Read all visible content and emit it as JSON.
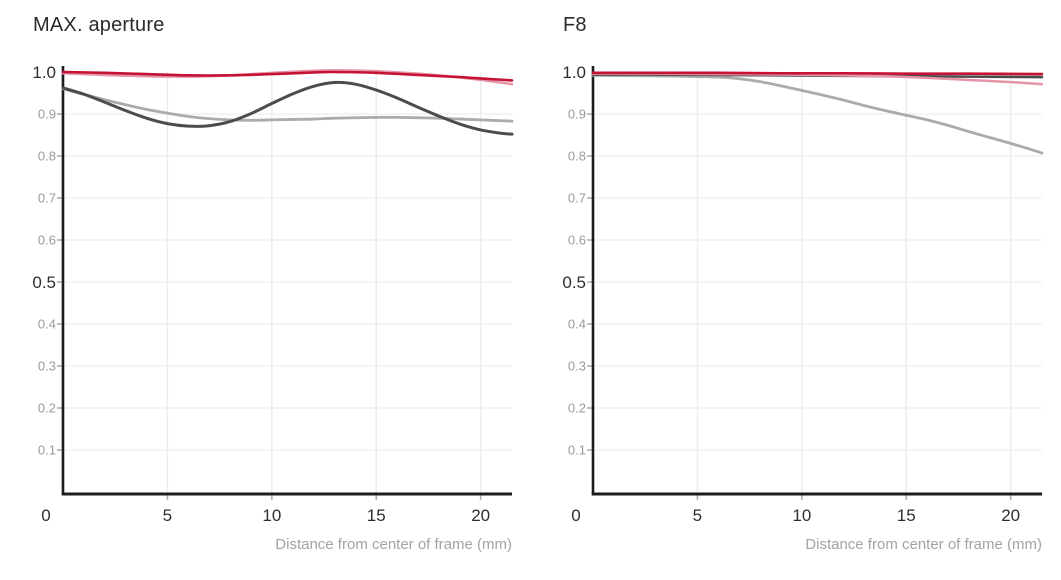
{
  "colors": {
    "background": "#ffffff",
    "crimson": "#c51235",
    "pink": "#e695a8",
    "dark_gray": "#4c4c4c",
    "light_gray": "#ababab",
    "axis_line": "#1c1c1c",
    "grid_vertical": "#ececec",
    "grid_horizontal": "#f2efef",
    "tick_mark": "#b0b0b0",
    "label_major": "#2e2e2e",
    "label_minor": "#9a9a9a",
    "caption": "#a3a3a3",
    "title": "#2b2b2b"
  },
  "chart_data": [
    {
      "type": "line",
      "title": "MAX. aperture",
      "xlabel": "Distance from center of frame (mm)",
      "ylabel": "",
      "xlim": [
        0,
        21.5
      ],
      "ylim": [
        0,
        1.0
      ],
      "x_ticks": [
        5,
        10,
        15,
        20
      ],
      "origin_label": "0",
      "y_ticks_major": [
        {
          "v": 1.0,
          "label": "1.0"
        },
        {
          "v": 0.5,
          "label": "0.5"
        }
      ],
      "y_ticks_minor": [
        {
          "v": 0.9,
          "label": "0.9"
        },
        {
          "v": 0.8,
          "label": "0.8"
        },
        {
          "v": 0.7,
          "label": "0.7"
        },
        {
          "v": 0.6,
          "label": "0.6"
        },
        {
          "v": 0.4,
          "label": "0.4"
        },
        {
          "v": 0.3,
          "label": "0.3"
        },
        {
          "v": 0.2,
          "label": "0.2"
        },
        {
          "v": 0.1,
          "label": "0.1"
        }
      ],
      "grid": true,
      "legend": "none",
      "series": [
        {
          "name": "light-gray",
          "color_key": "light_gray",
          "width": 2.8,
          "points": [
            [
              0,
              0.96
            ],
            [
              1,
              0.947
            ],
            [
              2,
              0.934
            ],
            [
              3,
              0.922
            ],
            [
              4,
              0.911
            ],
            [
              5,
              0.902
            ],
            [
              6,
              0.894
            ],
            [
              7,
              0.889
            ],
            [
              8,
              0.886
            ],
            [
              9,
              0.885
            ],
            [
              10,
              0.886
            ],
            [
              11,
              0.887
            ],
            [
              12,
              0.888
            ],
            [
              13,
              0.89
            ],
            [
              14,
              0.891
            ],
            [
              15,
              0.892
            ],
            [
              16,
              0.892
            ],
            [
              17,
              0.891
            ],
            [
              18,
              0.89
            ],
            [
              19,
              0.888
            ],
            [
              20,
              0.886
            ],
            [
              21,
              0.884
            ],
            [
              21.5,
              0.883
            ]
          ]
        },
        {
          "name": "dark-gray",
          "color_key": "dark_gray",
          "width": 3,
          "points": [
            [
              0,
              0.962
            ],
            [
              1,
              0.947
            ],
            [
              2,
              0.928
            ],
            [
              3,
              0.908
            ],
            [
              4,
              0.89
            ],
            [
              5,
              0.877
            ],
            [
              6,
              0.871
            ],
            [
              7,
              0.872
            ],
            [
              8,
              0.882
            ],
            [
              9,
              0.901
            ],
            [
              10,
              0.925
            ],
            [
              11,
              0.948
            ],
            [
              12,
              0.966
            ],
            [
              13,
              0.975
            ],
            [
              14,
              0.971
            ],
            [
              15,
              0.957
            ],
            [
              16,
              0.938
            ],
            [
              17,
              0.916
            ],
            [
              18,
              0.895
            ],
            [
              19,
              0.876
            ],
            [
              20,
              0.862
            ],
            [
              21,
              0.854
            ],
            [
              21.5,
              0.852
            ]
          ]
        },
        {
          "name": "pink",
          "color_key": "pink",
          "width": 2.5,
          "points": [
            [
              0,
              0.997
            ],
            [
              2,
              0.993
            ],
            [
              4,
              0.99
            ],
            [
              6,
              0.989
            ],
            [
              8,
              0.992
            ],
            [
              10,
              0.998
            ],
            [
              12,
              1.003
            ],
            [
              13.5,
              1.004
            ],
            [
              15,
              1.002
            ],
            [
              17,
              0.996
            ],
            [
              19,
              0.987
            ],
            [
              20.5,
              0.978
            ],
            [
              21.5,
              0.971
            ]
          ]
        },
        {
          "name": "crimson",
          "color_key": "crimson",
          "width": 2.6,
          "points": [
            [
              0,
              1.0
            ],
            [
              2,
              0.998
            ],
            [
              4,
              0.995
            ],
            [
              6,
              0.992
            ],
            [
              8,
              0.992
            ],
            [
              10,
              0.995
            ],
            [
              12,
              0.999
            ],
            [
              13,
              1.0
            ],
            [
              15,
              0.998
            ],
            [
              17,
              0.993
            ],
            [
              19,
              0.988
            ],
            [
              20.5,
              0.983
            ],
            [
              21.5,
              0.98
            ]
          ]
        }
      ]
    },
    {
      "type": "line",
      "title": "F8",
      "xlabel": "Distance from center of frame (mm)",
      "ylabel": "",
      "xlim": [
        0,
        21.5
      ],
      "ylim": [
        0,
        1.0
      ],
      "x_ticks": [
        5,
        10,
        15,
        20
      ],
      "origin_label": "0",
      "y_ticks_major": [
        {
          "v": 1.0,
          "label": "1.0"
        },
        {
          "v": 0.5,
          "label": "0.5"
        }
      ],
      "y_ticks_minor": [
        {
          "v": 0.9,
          "label": "0.9"
        },
        {
          "v": 0.8,
          "label": "0.8"
        },
        {
          "v": 0.7,
          "label": "0.7"
        },
        {
          "v": 0.6,
          "label": "0.6"
        },
        {
          "v": 0.4,
          "label": "0.4"
        },
        {
          "v": 0.3,
          "label": "0.3"
        },
        {
          "v": 0.2,
          "label": "0.2"
        },
        {
          "v": 0.1,
          "label": "0.1"
        }
      ],
      "grid": true,
      "legend": "none",
      "series": [
        {
          "name": "light-gray",
          "color_key": "light_gray",
          "width": 2.8,
          "points": [
            [
              0,
              0.992
            ],
            [
              2,
              0.991
            ],
            [
              4,
              0.99
            ],
            [
              6,
              0.988
            ],
            [
              7,
              0.984
            ],
            [
              8,
              0.977
            ],
            [
              9,
              0.967
            ],
            [
              10,
              0.956
            ],
            [
              11,
              0.945
            ],
            [
              12,
              0.933
            ],
            [
              13,
              0.92
            ],
            [
              14,
              0.908
            ],
            [
              15,
              0.897
            ],
            [
              16,
              0.886
            ],
            [
              17,
              0.873
            ],
            [
              18,
              0.858
            ],
            [
              19,
              0.844
            ],
            [
              20,
              0.83
            ],
            [
              21,
              0.815
            ],
            [
              21.5,
              0.807
            ]
          ]
        },
        {
          "name": "dark-gray",
          "color_key": "dark_gray",
          "width": 2.6,
          "points": [
            [
              0,
              0.994
            ],
            [
              3,
              0.994
            ],
            [
              6,
              0.993
            ],
            [
              9,
              0.992
            ],
            [
              12,
              0.991
            ],
            [
              15,
              0.99
            ],
            [
              18,
              0.989
            ],
            [
              21.5,
              0.988
            ]
          ]
        },
        {
          "name": "pink",
          "color_key": "pink",
          "width": 2.5,
          "points": [
            [
              0,
              0.996
            ],
            [
              3,
              0.996
            ],
            [
              6,
              0.995
            ],
            [
              9,
              0.994
            ],
            [
              12,
              0.992
            ],
            [
              14,
              0.99
            ],
            [
              16,
              0.986
            ],
            [
              18,
              0.981
            ],
            [
              20,
              0.976
            ],
            [
              21.5,
              0.971
            ]
          ]
        },
        {
          "name": "crimson",
          "color_key": "crimson",
          "width": 2.6,
          "points": [
            [
              0,
              0.998
            ],
            [
              3,
              0.998
            ],
            [
              6,
              0.998
            ],
            [
              9,
              0.997
            ],
            [
              12,
              0.997
            ],
            [
              15,
              0.996
            ],
            [
              18,
              0.996
            ],
            [
              21.5,
              0.995
            ]
          ]
        }
      ]
    }
  ]
}
